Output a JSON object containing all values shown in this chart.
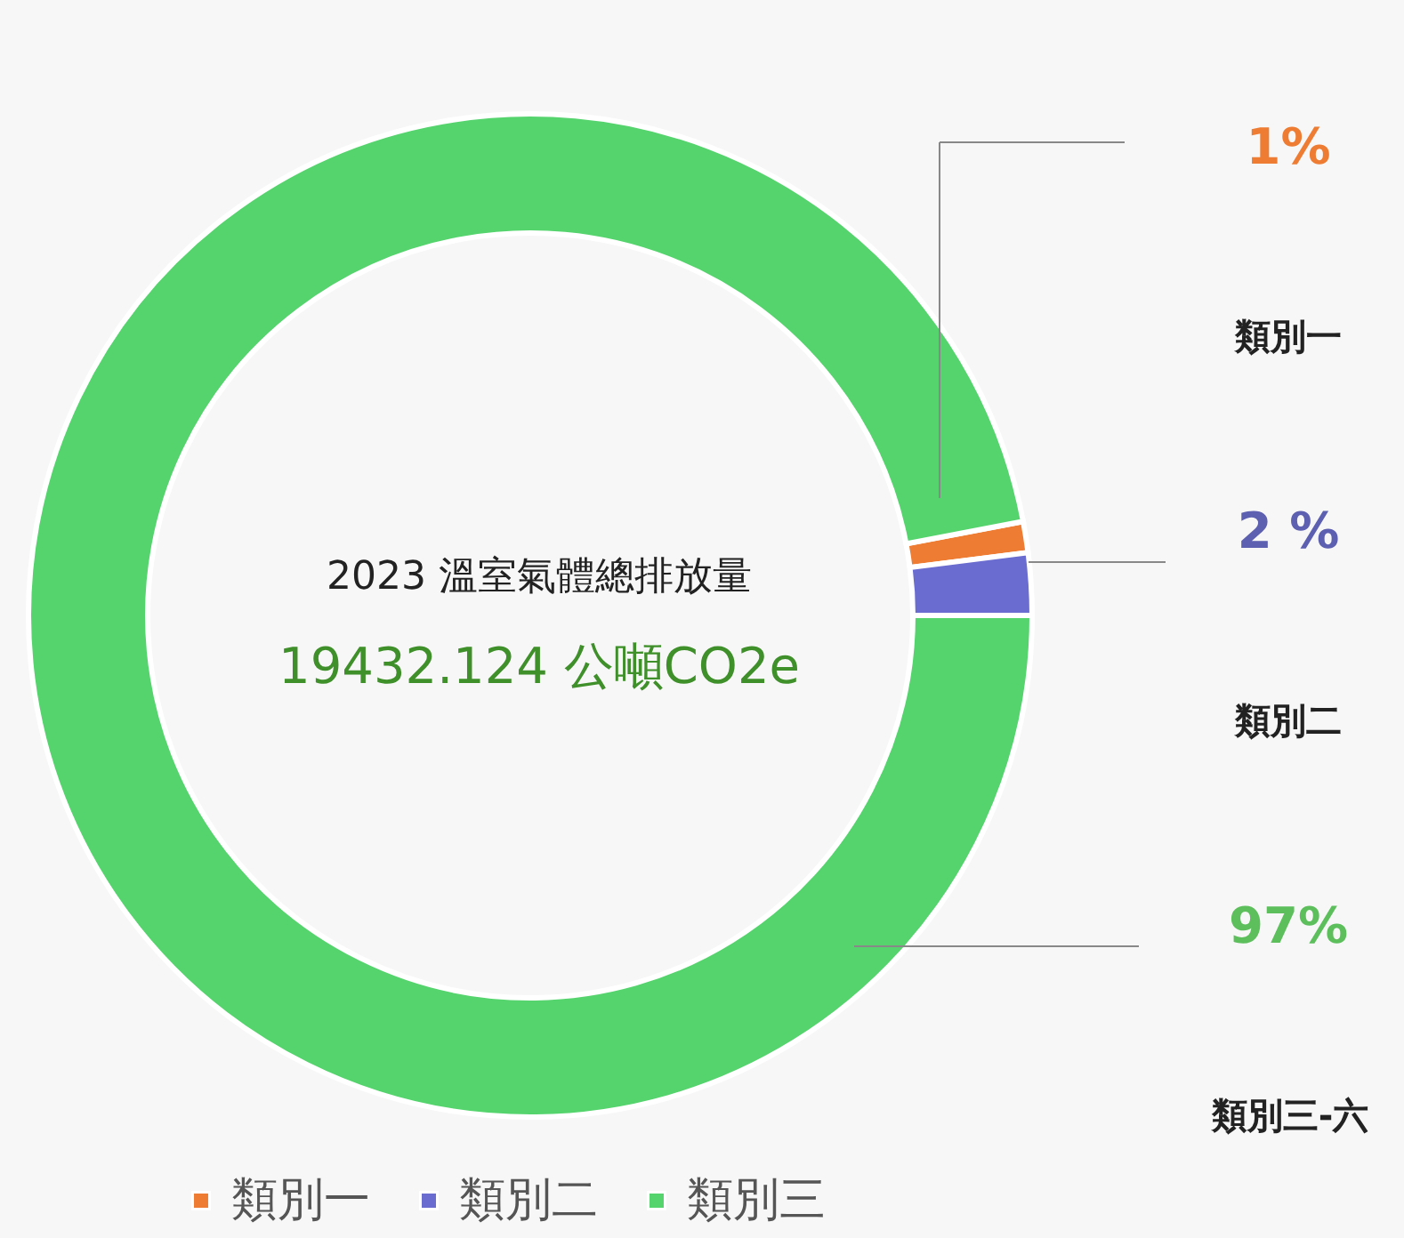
{
  "chart_data": {
    "type": "donut",
    "categories": [
      "類別一",
      "類別二",
      "類別三"
    ],
    "values": [
      1,
      2,
      97
    ],
    "colors": [
      "#ee7d33",
      "#6a6ccf",
      "#55d46e"
    ],
    "legend": "bottom left",
    "annotations": [
      "2023 溫室氣體總排放量",
      "19432.124 公噸CO2e",
      "1%",
      "類別一",
      "2 %",
      "類別二",
      "97%",
      "類別三-六"
    ]
  }
}
